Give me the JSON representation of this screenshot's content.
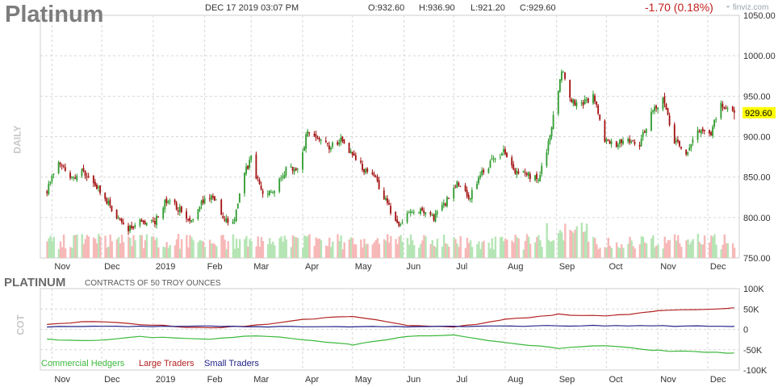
{
  "header": {
    "title": "Platinum",
    "datetime": "DEC 17 2019 03:07 PM",
    "open": "O:932.60",
    "high": "H:936.90",
    "low": "L:921.20",
    "close": "C:929.60",
    "change": "-1.70 (0.18%)",
    "brand": "finviz.com"
  },
  "price_panel": {
    "period_label": "DAILY",
    "last_price_tag": "929.60"
  },
  "cot_panel": {
    "title": "PLATINUM",
    "subtitle": "CONTRACTS OF 50 TROY OUNCES",
    "side_label": "COT"
  },
  "colors": {
    "up": "#2e9b2e",
    "down": "#a30f0f",
    "vol_up": "#b5e5b5",
    "vol_down": "#f7b8b8",
    "commercial": "#3cb83c",
    "large": "#b32121",
    "small": "#222288",
    "price_tag_bg": "#ffff00",
    "grid": "#d7d7d7"
  },
  "chart_data": [
    {
      "type": "candlestick",
      "title": "Platinum",
      "period": "DAILY",
      "x_months": [
        "Nov",
        "Dec",
        "2019",
        "Feb",
        "Mar",
        "Apr",
        "May",
        "Jun",
        "Jul",
        "Aug",
        "Sep",
        "Oct",
        "Nov",
        "Dec"
      ],
      "y_ticks": [
        "1050.00",
        "1000.00",
        "950.00",
        "900.00",
        "850.00",
        "800.00",
        "750.00"
      ],
      "ylim": [
        750,
        1050
      ],
      "last_price": 929.6,
      "anchors": [
        {
          "date": "2018-10-29",
          "close": 833
        },
        {
          "date": "2018-11-05",
          "close": 870
        },
        {
          "date": "2018-11-12",
          "close": 848
        },
        {
          "date": "2018-11-19",
          "close": 856
        },
        {
          "date": "2018-11-26",
          "close": 845
        },
        {
          "date": "2018-12-03",
          "close": 823
        },
        {
          "date": "2018-12-10",
          "close": 800
        },
        {
          "date": "2018-12-17",
          "close": 787
        },
        {
          "date": "2018-12-24",
          "close": 794
        },
        {
          "date": "2019-01-02",
          "close": 796
        },
        {
          "date": "2019-01-09",
          "close": 822
        },
        {
          "date": "2019-01-16",
          "close": 811
        },
        {
          "date": "2019-01-23",
          "close": 796
        },
        {
          "date": "2019-01-30",
          "close": 818
        },
        {
          "date": "2019-02-06",
          "close": 825
        },
        {
          "date": "2019-02-13",
          "close": 800
        },
        {
          "date": "2019-02-18",
          "close": 791
        },
        {
          "date": "2019-02-25",
          "close": 855
        },
        {
          "date": "2019-03-01",
          "close": 873
        },
        {
          "date": "2019-03-08",
          "close": 825
        },
        {
          "date": "2019-03-15",
          "close": 836
        },
        {
          "date": "2019-03-22",
          "close": 860
        },
        {
          "date": "2019-03-29",
          "close": 858
        },
        {
          "date": "2019-04-04",
          "close": 907
        },
        {
          "date": "2019-04-10",
          "close": 897
        },
        {
          "date": "2019-04-17",
          "close": 887
        },
        {
          "date": "2019-04-24",
          "close": 897
        },
        {
          "date": "2019-05-01",
          "close": 875
        },
        {
          "date": "2019-05-08",
          "close": 860
        },
        {
          "date": "2019-05-15",
          "close": 848
        },
        {
          "date": "2019-05-22",
          "close": 815
        },
        {
          "date": "2019-05-29",
          "close": 792
        },
        {
          "date": "2019-06-05",
          "close": 810
        },
        {
          "date": "2019-06-12",
          "close": 810
        },
        {
          "date": "2019-06-19",
          "close": 800
        },
        {
          "date": "2019-06-26",
          "close": 818
        },
        {
          "date": "2019-07-03",
          "close": 845
        },
        {
          "date": "2019-07-10",
          "close": 822
        },
        {
          "date": "2019-07-17",
          "close": 852
        },
        {
          "date": "2019-07-24",
          "close": 870
        },
        {
          "date": "2019-07-31",
          "close": 880
        },
        {
          "date": "2019-08-07",
          "close": 858
        },
        {
          "date": "2019-08-14",
          "close": 852
        },
        {
          "date": "2019-08-21",
          "close": 848
        },
        {
          "date": "2019-08-28",
          "close": 900
        },
        {
          "date": "2019-09-04",
          "close": 985
        },
        {
          "date": "2019-09-09",
          "close": 945
        },
        {
          "date": "2019-09-16",
          "close": 938
        },
        {
          "date": "2019-09-23",
          "close": 952
        },
        {
          "date": "2019-09-30",
          "close": 898
        },
        {
          "date": "2019-10-07",
          "close": 890
        },
        {
          "date": "2019-10-14",
          "close": 897
        },
        {
          "date": "2019-10-21",
          "close": 892
        },
        {
          "date": "2019-10-28",
          "close": 930
        },
        {
          "date": "2019-11-04",
          "close": 948
        },
        {
          "date": "2019-11-11",
          "close": 895
        },
        {
          "date": "2019-11-18",
          "close": 880
        },
        {
          "date": "2019-11-25",
          "close": 910
        },
        {
          "date": "2019-12-02",
          "close": 900
        },
        {
          "date": "2019-12-09",
          "close": 940
        },
        {
          "date": "2019-12-17",
          "close": 929.6
        }
      ]
    },
    {
      "type": "line",
      "title": "PLATINUM",
      "subtitle": "CONTRACTS OF 50 TROY OUNCES",
      "x_months": [
        "Nov",
        "Dec",
        "2019",
        "Feb",
        "Mar",
        "Apr",
        "May",
        "Jun",
        "Jul",
        "Aug",
        "Sep",
        "Oct",
        "Nov",
        "Dec"
      ],
      "y_ticks": [
        "100K",
        "50K",
        "0",
        "-50K",
        "-100K"
      ],
      "ylim": [
        -100000,
        100000
      ],
      "series": [
        {
          "name": "Commercial Hedgers",
          "color": "#3cb83c",
          "points": [
            {
              "date": "2018-10-29",
              "value": -25000
            },
            {
              "date": "2018-11-26",
              "value": -28000
            },
            {
              "date": "2018-12-24",
              "value": -18000
            },
            {
              "date": "2019-02-04",
              "value": -25000
            },
            {
              "date": "2019-03-04",
              "value": -15000
            },
            {
              "date": "2019-04-01",
              "value": -25000
            },
            {
              "date": "2019-05-01",
              "value": -38000
            },
            {
              "date": "2019-06-03",
              "value": -18000
            },
            {
              "date": "2019-07-01",
              "value": -13000
            },
            {
              "date": "2019-08-01",
              "value": -33000
            },
            {
              "date": "2019-09-02",
              "value": -46000
            },
            {
              "date": "2019-10-01",
              "value": -40000
            },
            {
              "date": "2019-11-01",
              "value": -52000
            },
            {
              "date": "2019-12-17",
              "value": -58000
            }
          ]
        },
        {
          "name": "Large Traders",
          "color": "#b32121",
          "points": [
            {
              "date": "2018-10-29",
              "value": 13000
            },
            {
              "date": "2018-11-26",
              "value": 20000
            },
            {
              "date": "2018-12-24",
              "value": 12000
            },
            {
              "date": "2019-02-04",
              "value": 3000
            },
            {
              "date": "2019-03-04",
              "value": 10000
            },
            {
              "date": "2019-04-01",
              "value": 25000
            },
            {
              "date": "2019-05-01",
              "value": 32000
            },
            {
              "date": "2019-06-03",
              "value": 10000
            },
            {
              "date": "2019-07-01",
              "value": 5000
            },
            {
              "date": "2019-08-01",
              "value": 24000
            },
            {
              "date": "2019-09-02",
              "value": 37000
            },
            {
              "date": "2019-10-01",
              "value": 32000
            },
            {
              "date": "2019-11-01",
              "value": 45000
            },
            {
              "date": "2019-12-17",
              "value": 53000
            }
          ]
        },
        {
          "name": "Small Traders",
          "color": "#222288",
          "points": [
            {
              "date": "2018-10-29",
              "value": 6000
            },
            {
              "date": "2018-12-24",
              "value": 8000
            },
            {
              "date": "2019-03-04",
              "value": 7000
            },
            {
              "date": "2019-06-03",
              "value": 6000
            },
            {
              "date": "2019-09-02",
              "value": 9000
            },
            {
              "date": "2019-12-17",
              "value": 8000
            }
          ]
        }
      ]
    }
  ]
}
